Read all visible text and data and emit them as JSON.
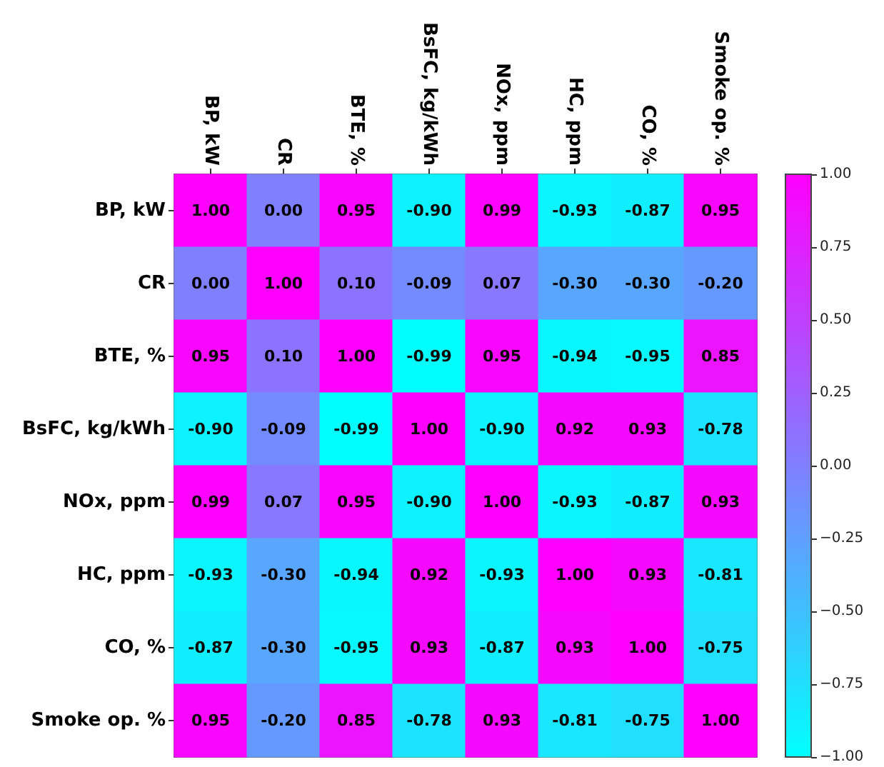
{
  "chart_data": {
    "type": "heatmap",
    "categories": [
      "BP, kW",
      "CR",
      "BTE, %",
      "BsFC, kg/kWh",
      "NOx, ppm",
      "HC, ppm",
      "CO, %",
      "Smoke op. %"
    ],
    "y_categories": [
      "BP, kW",
      "CR",
      "BTE, %",
      "BsFC, kg/kWh",
      "NOx, ppm",
      "HC, ppm",
      "CO, %",
      "Smoke op. %"
    ],
    "cells": [
      [
        1.0,
        0.0,
        0.95,
        -0.9,
        0.99,
        -0.93,
        -0.87,
        0.95
      ],
      [
        0.0,
        1.0,
        0.1,
        -0.09,
        0.07,
        -0.3,
        -0.3,
        -0.2
      ],
      [
        0.95,
        0.1,
        1.0,
        -0.99,
        0.95,
        -0.94,
        -0.95,
        0.85
      ],
      [
        -0.9,
        -0.09,
        -0.99,
        1.0,
        -0.9,
        0.92,
        0.93,
        -0.78
      ],
      [
        0.99,
        0.07,
        0.95,
        -0.9,
        1.0,
        -0.93,
        -0.87,
        0.93
      ],
      [
        -0.93,
        -0.3,
        -0.94,
        0.92,
        -0.93,
        1.0,
        0.93,
        -0.81
      ],
      [
        -0.87,
        -0.3,
        -0.95,
        0.93,
        -0.87,
        0.93,
        1.0,
        -0.75
      ],
      [
        0.95,
        -0.2,
        0.85,
        -0.78,
        0.93,
        -0.81,
        -0.75,
        1.0
      ]
    ],
    "cell_labels": [
      [
        "1.00",
        "0.00",
        "0.95",
        "-0.90",
        "0.99",
        "-0.93",
        "-0.87",
        "0.95"
      ],
      [
        "0.00",
        "1.00",
        "0.10",
        "-0.09",
        "0.07",
        "-0.30",
        "-0.30",
        "-0.20"
      ],
      [
        "0.95",
        "0.10",
        "1.00",
        "-0.99",
        "0.95",
        "-0.94",
        "-0.95",
        "0.85"
      ],
      [
        "-0.90",
        "-0.09",
        "-0.99",
        "1.00",
        "-0.90",
        "0.92",
        "0.93",
        "-0.78"
      ],
      [
        "0.99",
        "0.07",
        "0.95",
        "-0.90",
        "1.00",
        "-0.93",
        "-0.87",
        "0.93"
      ],
      [
        "-0.93",
        "-0.30",
        "-0.94",
        "0.92",
        "-0.93",
        "1.00",
        "0.93",
        "-0.81"
      ],
      [
        "-0.87",
        "-0.30",
        "-0.95",
        "0.93",
        "-0.87",
        "0.93",
        "1.00",
        "-0.75"
      ],
      [
        "0.95",
        "-0.20",
        "0.85",
        "-0.78",
        "0.93",
        "-0.81",
        "-0.75",
        "1.00"
      ]
    ],
    "clim": [
      -1,
      1
    ],
    "cticks": [
      {
        "value": -1,
        "label": "−1.00"
      },
      {
        "value": -0.75,
        "label": "−0.75"
      },
      {
        "value": -0.5,
        "label": "−0.50"
      },
      {
        "value": -0.25,
        "label": "−0.25"
      },
      {
        "value": 0,
        "label": "0.00"
      },
      0.25,
      {
        "value": 0.5,
        "label": "0.50"
      },
      0.75,
      {
        "value": 1,
        "label": "1.00"
      }
    ]
  }
}
